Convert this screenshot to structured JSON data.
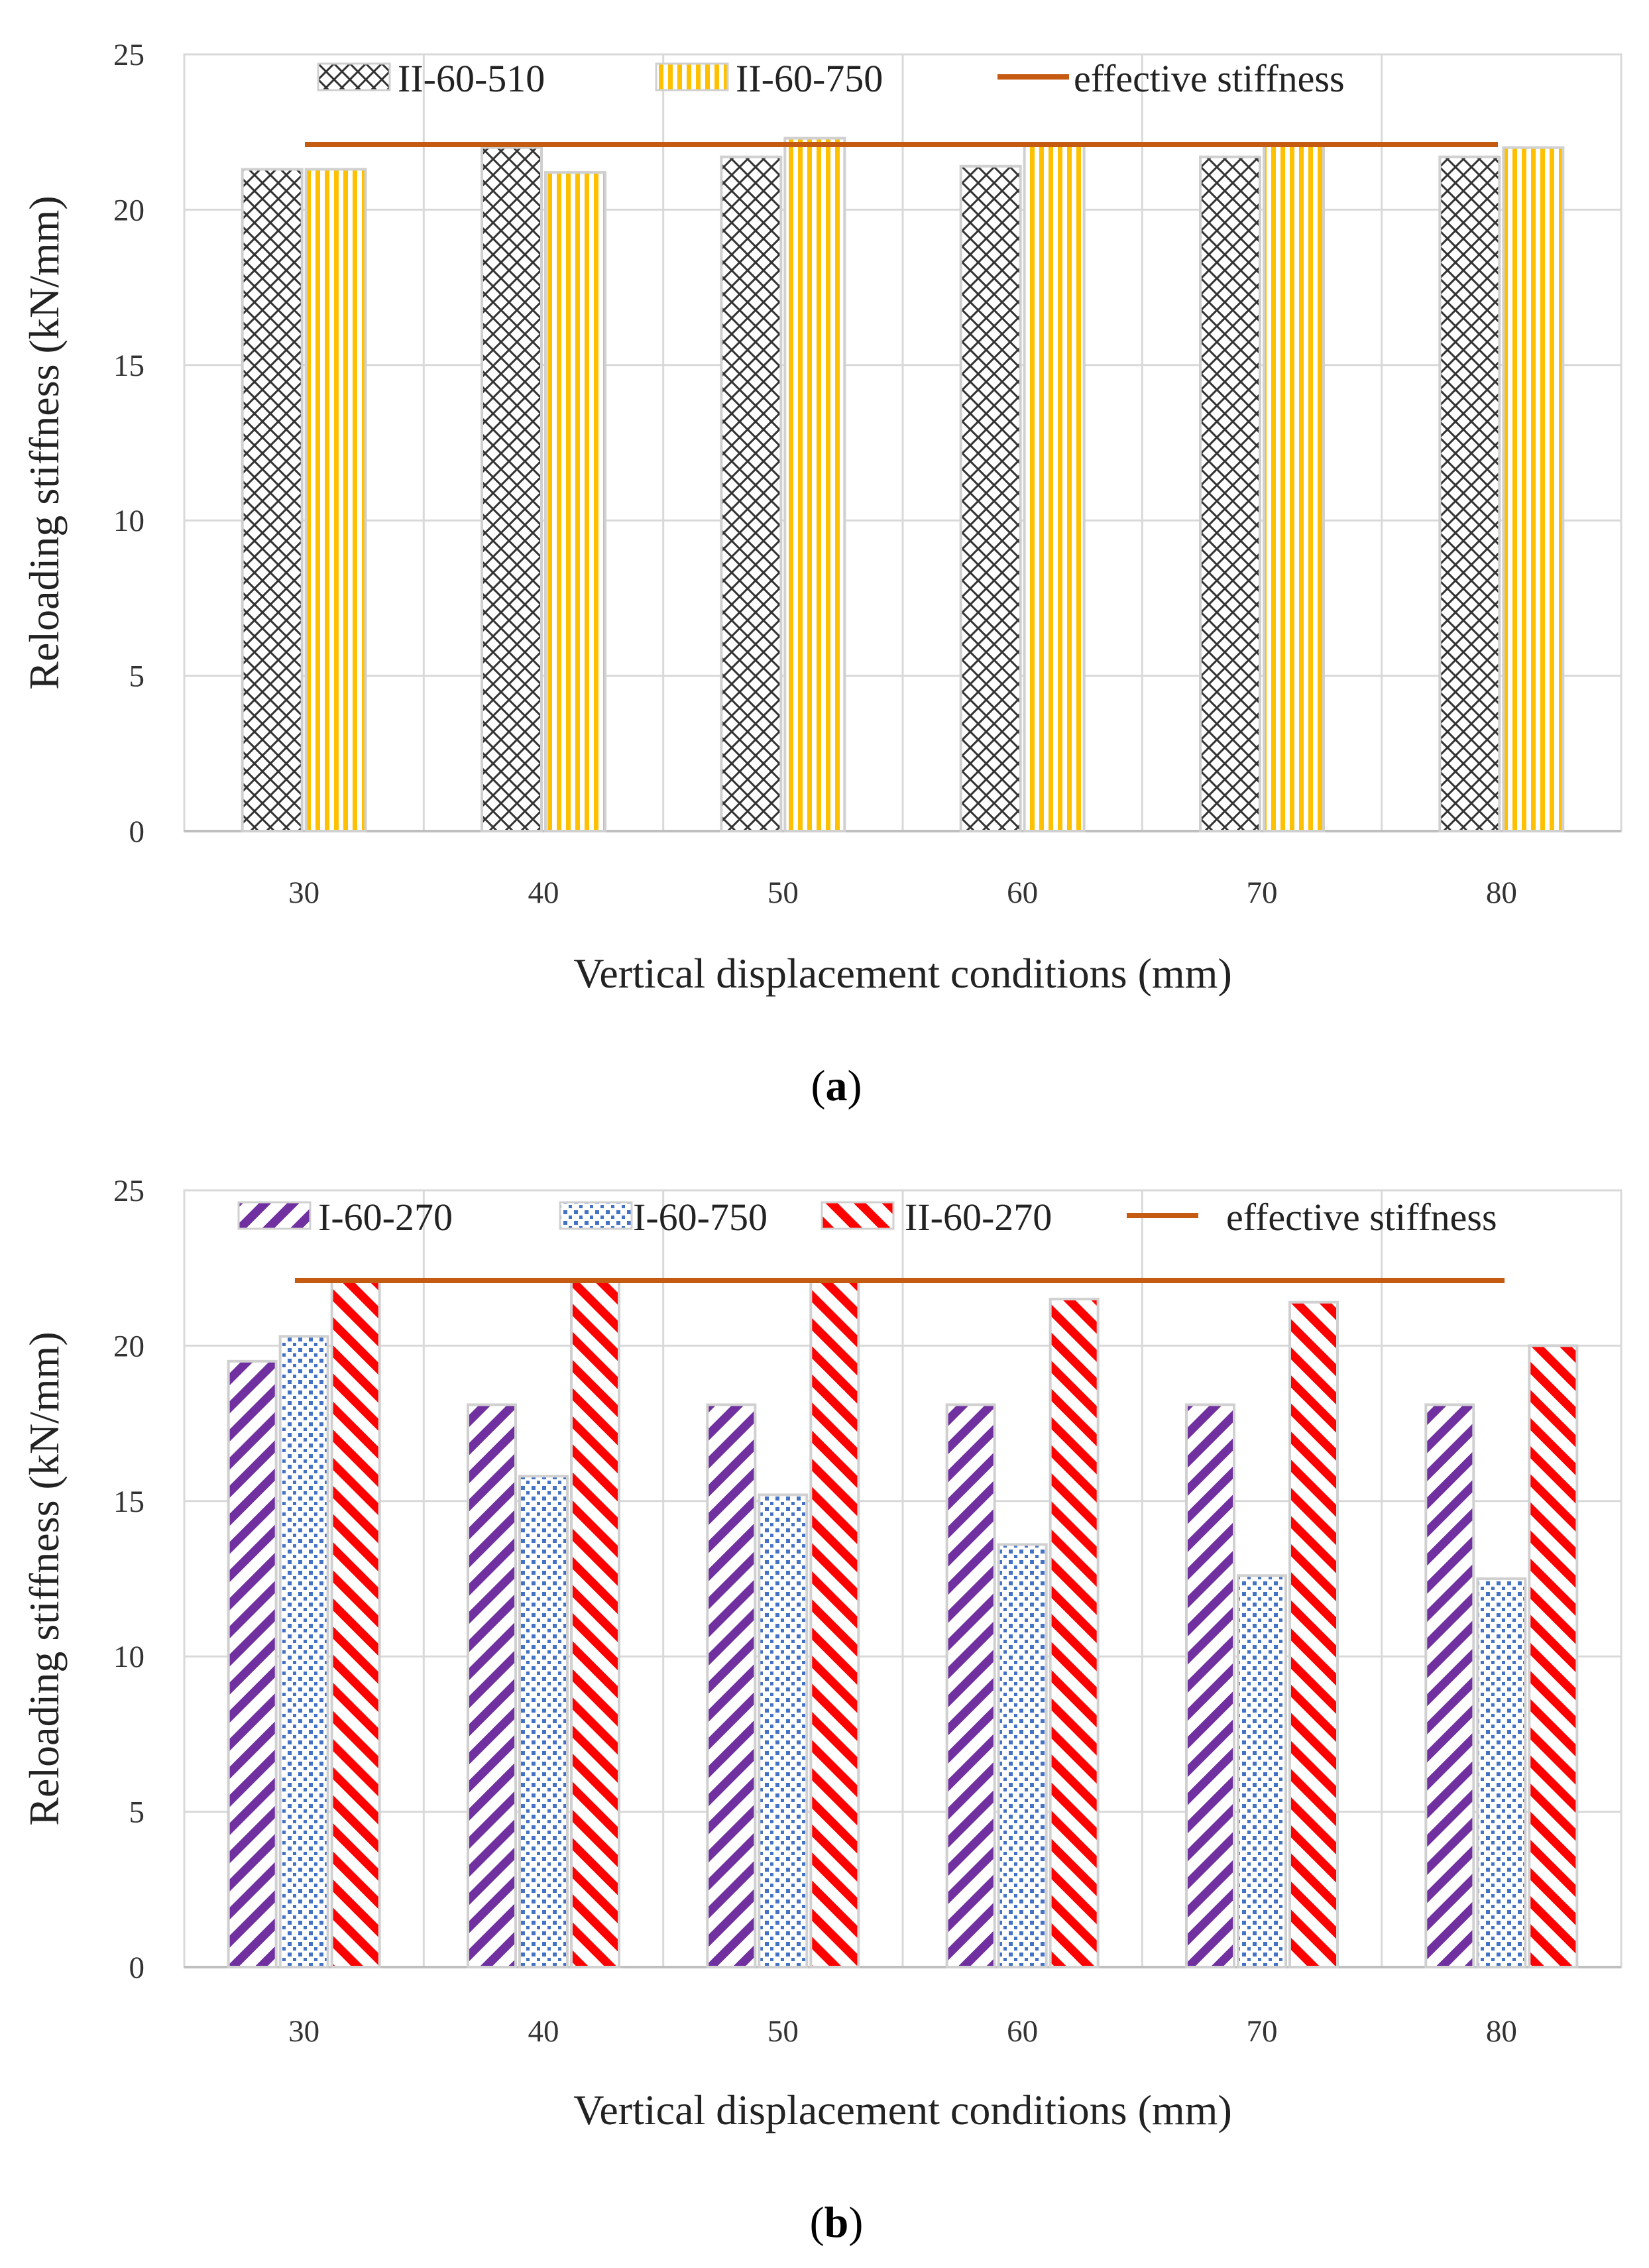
{
  "chart_data": [
    {
      "type": "bar",
      "panel": "a",
      "caption": "(a)",
      "caption_letter": "a",
      "categories": [
        "30",
        "40",
        "50",
        "60",
        "70",
        "80"
      ],
      "series": [
        {
          "name": "II-60-510",
          "values": [
            21.3,
            22.0,
            21.7,
            21.4,
            21.7,
            21.7
          ],
          "pattern": "crosshatch",
          "color": "#333333"
        },
        {
          "name": "II-60-750",
          "values": [
            21.3,
            21.2,
            22.3,
            22.1,
            22.1,
            22.0
          ],
          "pattern": "vstripes",
          "color": "#FFC000"
        }
      ],
      "reference_line": {
        "name": "effective stiffness",
        "value": 22.1,
        "color": "#C55A11"
      },
      "ylim": [
        0,
        25
      ],
      "yticks": [
        "0",
        "5",
        "10",
        "15",
        "20",
        "25"
      ],
      "xlabel": "Vertical  displacement conditions (mm)",
      "ylabel": "Reloading stiffness (kN/mm)",
      "grid": true,
      "legend": "top"
    },
    {
      "type": "bar",
      "panel": "b",
      "caption": "(b)",
      "caption_letter": "b",
      "categories": [
        "30",
        "40",
        "50",
        "60",
        "70",
        "80"
      ],
      "series": [
        {
          "name": "I-60-270",
          "values": [
            19.5,
            18.1,
            18.1,
            18.1,
            18.1,
            18.1
          ],
          "pattern": "diagonal",
          "color": "#7030A0"
        },
        {
          "name": "I-60-750",
          "values": [
            20.3,
            15.8,
            15.2,
            13.6,
            12.6,
            12.5
          ],
          "pattern": "dots",
          "color": "#4472C4"
        },
        {
          "name": "II-60-270",
          "values": [
            22.1,
            22.1,
            22.1,
            21.5,
            21.4,
            20.0
          ],
          "pattern": "diagonal",
          "color": "#FF0000"
        }
      ],
      "reference_line": {
        "name": "effective stiffness",
        "value": 22.1,
        "color": "#C55A11"
      },
      "ylim": [
        0,
        25
      ],
      "yticks": [
        "0",
        "5",
        "10",
        "15",
        "20",
        "25"
      ],
      "xlabel": "Vertical  displacement conditions (mm)",
      "ylabel": "Reloading stiffness (kN/mm)",
      "grid": true,
      "legend": "top"
    }
  ]
}
